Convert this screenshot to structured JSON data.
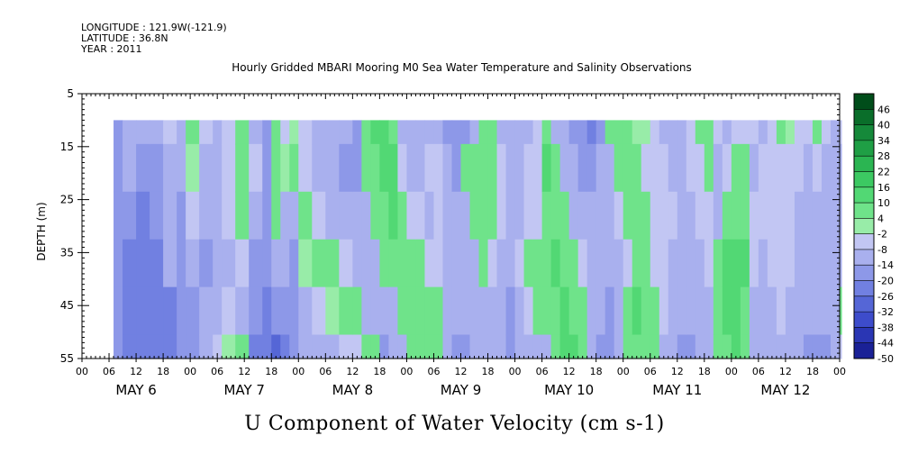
{
  "header": {
    "longitude": "LONGITUDE : 121.9W(-121.9)",
    "latitude": "LATITUDE : 36.8N",
    "year": "YEAR : 2011",
    "subtitle": "Hourly Gridded MBARI Mooring M0 Sea Water Temperature and Salinity Observations"
  },
  "chart_data": {
    "type": "heatmap",
    "title": "U Component of Water Velocity (cm s-1)",
    "subtitle": "Hourly Gridded MBARI Mooring M0 Sea Water Temperature and Salinity Observations",
    "ylabel": "DEPTH (m)",
    "xlabel": "",
    "y_axis": {
      "range": [
        5,
        55
      ],
      "inverted": true,
      "tick_labels": [
        "5",
        "15",
        "25",
        "35",
        "45",
        "55"
      ]
    },
    "x_axis": {
      "range_hours": [
        0,
        168
      ],
      "hour_tick_labels": [
        "00",
        "06",
        "12",
        "18",
        "00",
        "06",
        "12",
        "18",
        "00",
        "06",
        "12",
        "18",
        "00",
        "06",
        "12",
        "18",
        "00",
        "06",
        "12",
        "18",
        "00",
        "06",
        "12",
        "18",
        "00",
        "06",
        "12",
        "18",
        "00"
      ],
      "day_labels": [
        "MAY  6",
        "MAY  7",
        "MAY  8",
        "MAY  9",
        "MAY 10",
        "MAY 11",
        "MAY 12"
      ]
    },
    "data_extent": {
      "start_hour": 7,
      "end_hour": 168,
      "top_depth": 10,
      "bottom_depth": 55
    },
    "colorbar": {
      "labels": [
        "46",
        "40",
        "34",
        "28",
        "22",
        "16",
        "10",
        "4",
        "-2",
        "-8",
        "-14",
        "-20",
        "-26",
        "-32",
        "-38",
        "-44",
        "-50"
      ],
      "levels": [
        52,
        46,
        40,
        34,
        28,
        22,
        16,
        10,
        4,
        -2,
        -8,
        -14,
        -20,
        -26,
        -32,
        -38,
        -44,
        -50
      ],
      "colors": [
        "#004d1a",
        "#0a6e2a",
        "#15893a",
        "#1f9f45",
        "#2bb552",
        "#3cc962",
        "#52d874",
        "#6fe38a",
        "#98eca8",
        "#c2c6f3",
        "#a9b0ee",
        "#8d98e8",
        "#7180e1",
        "#5566d6",
        "#3d4ccb",
        "#2a36b4",
        "#1a2196"
      ]
    },
    "profile_columns": [
      {
        "hour": 7,
        "values": [
          -15,
          -16,
          -18,
          -20,
          -20,
          -18
        ]
      },
      {
        "hour": 9,
        "values": [
          -10,
          -12,
          -20,
          -22,
          -24,
          -22
        ]
      },
      {
        "hour": 12,
        "values": [
          -14,
          -18,
          -22,
          -26,
          -26,
          -24
        ]
      },
      {
        "hour": 15,
        "values": [
          -12,
          -16,
          -20,
          -24,
          -26,
          -26
        ]
      },
      {
        "hour": 18,
        "values": [
          -8,
          -10,
          -10,
          -12,
          -22,
          -22
        ]
      },
      {
        "hour": 21,
        "values": [
          -10,
          -14,
          -16,
          -20,
          -20,
          -18
        ]
      },
      {
        "hour": 23,
        "values": [
          4,
          2,
          -8,
          -14,
          -18,
          -18
        ]
      },
      {
        "hour": 26,
        "values": [
          -6,
          -10,
          -14,
          -16,
          -14,
          -12
        ]
      },
      {
        "hour": 29,
        "values": [
          -12,
          -14,
          -14,
          -14,
          -10,
          -8
        ]
      },
      {
        "hour": 31,
        "values": [
          -6,
          -8,
          -8,
          -10,
          -4,
          -2
        ]
      },
      {
        "hour": 34,
        "values": [
          4,
          6,
          8,
          -8,
          -12,
          4
        ]
      },
      {
        "hour": 37,
        "values": [
          -10,
          -8,
          -12,
          -16,
          -20,
          -22
        ]
      },
      {
        "hour": 40,
        "values": [
          -16,
          -18,
          -16,
          -20,
          -24,
          -26
        ]
      },
      {
        "hour": 42,
        "values": [
          4,
          6,
          4,
          -12,
          -20,
          -28
        ]
      },
      {
        "hour": 44,
        "values": [
          -6,
          -2,
          -10,
          -14,
          -20,
          -22
        ]
      },
      {
        "hour": 46,
        "values": [
          2,
          6,
          -10,
          -16,
          -18,
          -16
        ]
      },
      {
        "hour": 48,
        "values": [
          -8,
          -4,
          4,
          2,
          -12,
          -14
        ]
      },
      {
        "hour": 51,
        "values": [
          -10,
          -12,
          -6,
          6,
          -6,
          -12
        ]
      },
      {
        "hour": 54,
        "values": [
          -12,
          -14,
          -10,
          4,
          2,
          -10
        ]
      },
      {
        "hour": 57,
        "values": [
          -14,
          -16,
          -12,
          -8,
          6,
          -8
        ]
      },
      {
        "hour": 60,
        "values": [
          -16,
          -16,
          -14,
          -12,
          4,
          -4
        ]
      },
      {
        "hour": 62,
        "values": [
          8,
          6,
          -12,
          -14,
          -12,
          6
        ]
      },
      {
        "hour": 64,
        "values": [
          10,
          8,
          6,
          -12,
          -14,
          8
        ]
      },
      {
        "hour": 66,
        "values": [
          12,
          10,
          8,
          4,
          -12,
          -16
        ]
      },
      {
        "hour": 68,
        "values": [
          8,
          10,
          10,
          6,
          -10,
          -14
        ]
      },
      {
        "hour": 70,
        "values": [
          -10,
          -8,
          8,
          6,
          4,
          -12
        ]
      },
      {
        "hour": 72,
        "values": [
          -12,
          -10,
          -6,
          8,
          6,
          4
        ]
      },
      {
        "hour": 74,
        "values": [
          -14,
          -12,
          -8,
          4,
          6,
          8
        ]
      },
      {
        "hour": 76,
        "values": [
          -12,
          -8,
          -10,
          -6,
          6,
          8
        ]
      },
      {
        "hour": 78,
        "values": [
          -10,
          -6,
          -8,
          -8,
          4,
          6
        ]
      },
      {
        "hour": 80,
        "values": [
          -16,
          -14,
          -12,
          -10,
          -12,
          -14
        ]
      },
      {
        "hour": 82,
        "values": [
          -20,
          -18,
          -14,
          -12,
          -14,
          -16
        ]
      },
      {
        "hour": 84,
        "values": [
          -16,
          6,
          -10,
          -12,
          -14,
          -16
        ]
      },
      {
        "hour": 86,
        "values": [
          -14,
          8,
          6,
          -10,
          -12,
          -14
        ]
      },
      {
        "hour": 88,
        "values": [
          4,
          6,
          8,
          4,
          -10,
          -12
        ]
      },
      {
        "hour": 90,
        "values": [
          6,
          8,
          4,
          -8,
          -10,
          -12
        ]
      },
      {
        "hour": 92,
        "values": [
          -10,
          -6,
          -8,
          -10,
          -12,
          -14
        ]
      },
      {
        "hour": 94,
        "values": [
          -12,
          -10,
          -12,
          -14,
          -16,
          -18
        ]
      },
      {
        "hour": 96,
        "values": [
          -14,
          -12,
          -10,
          -8,
          -10,
          -12
        ]
      },
      {
        "hour": 98,
        "values": [
          -10,
          -8,
          -6,
          4,
          -8,
          -10
        ]
      },
      {
        "hour": 100,
        "values": [
          -8,
          -6,
          -4,
          6,
          4,
          -10
        ]
      },
      {
        "hour": 102,
        "values": [
          8,
          10,
          6,
          4,
          8,
          -12
        ]
      },
      {
        "hour": 104,
        "values": [
          -10,
          6,
          8,
          10,
          6,
          8
        ]
      },
      {
        "hour": 106,
        "values": [
          -12,
          -10,
          4,
          8,
          10,
          10
        ]
      },
      {
        "hour": 108,
        "values": [
          -18,
          -14,
          -10,
          4,
          8,
          12
        ]
      },
      {
        "hour": 110,
        "values": [
          -20,
          -16,
          -12,
          -8,
          4,
          8
        ]
      },
      {
        "hour": 112,
        "values": [
          -24,
          -18,
          -14,
          -12,
          -10,
          -14
        ]
      },
      {
        "hour": 114,
        "values": [
          -16,
          -14,
          -12,
          -10,
          -12,
          -18
        ]
      },
      {
        "hour": 116,
        "values": [
          4,
          -10,
          -12,
          -14,
          -16,
          -20
        ]
      },
      {
        "hour": 118,
        "values": [
          6,
          4,
          -8,
          -10,
          -12,
          -10
        ]
      },
      {
        "hour": 120,
        "values": [
          4,
          6,
          4,
          -6,
          4,
          8
        ]
      },
      {
        "hour": 122,
        "values": [
          2,
          4,
          6,
          8,
          10,
          8
        ]
      },
      {
        "hour": 124,
        "values": [
          -2,
          -4,
          4,
          6,
          8,
          6
        ]
      },
      {
        "hour": 126,
        "values": [
          -8,
          -6,
          -4,
          -6,
          4,
          4
        ]
      },
      {
        "hour": 128,
        "values": [
          -10,
          -8,
          -6,
          -8,
          -6,
          -10
        ]
      },
      {
        "hour": 130,
        "values": [
          -12,
          -10,
          -8,
          -10,
          -12,
          -14
        ]
      },
      {
        "hour": 132,
        "values": [
          -10,
          -12,
          -10,
          -12,
          -14,
          -16
        ]
      },
      {
        "hour": 134,
        "values": [
          -6,
          -8,
          -10,
          -12,
          -14,
          -16
        ]
      },
      {
        "hour": 136,
        "values": [
          4,
          -4,
          -8,
          -10,
          -12,
          -14
        ]
      },
      {
        "hour": 138,
        "values": [
          6,
          4,
          -6,
          -8,
          -10,
          -12
        ]
      },
      {
        "hour": 140,
        "values": [
          -8,
          -12,
          -14,
          6,
          8,
          4
        ]
      },
      {
        "hour": 142,
        "values": [
          -10,
          -8,
          4,
          10,
          12,
          8
        ]
      },
      {
        "hour": 144,
        "values": [
          -8,
          6,
          8,
          14,
          12,
          10
        ]
      },
      {
        "hour": 146,
        "values": [
          -6,
          4,
          6,
          10,
          8,
          6
        ]
      },
      {
        "hour": 148,
        "values": [
          -8,
          -10,
          -6,
          -8,
          -10,
          -12
        ]
      },
      {
        "hour": 150,
        "values": [
          -10,
          -8,
          -8,
          -10,
          -12,
          -12
        ]
      },
      {
        "hour": 152,
        "values": [
          -6,
          -4,
          -6,
          -8,
          -10,
          -10
        ]
      },
      {
        "hour": 154,
        "values": [
          4,
          -4,
          -6,
          -8,
          -8,
          -10
        ]
      },
      {
        "hour": 156,
        "values": [
          2,
          -6,
          -8,
          -8,
          -10,
          -12
        ]
      },
      {
        "hour": 158,
        "values": [
          -6,
          -8,
          -10,
          -10,
          -12,
          -14
        ]
      },
      {
        "hour": 160,
        "values": [
          -8,
          -10,
          -10,
          -12,
          -14,
          -16
        ]
      },
      {
        "hour": 162,
        "values": [
          4,
          -8,
          -10,
          -12,
          -14,
          -18
        ]
      },
      {
        "hour": 164,
        "values": [
          -6,
          -10,
          -12,
          -12,
          -14,
          -16
        ]
      },
      {
        "hour": 166,
        "values": [
          -10,
          -12,
          -14,
          -14,
          -12,
          -10
        ]
      },
      {
        "hour": 168,
        "values": [
          -8,
          -10,
          -12,
          -10,
          4,
          -8
        ]
      }
    ],
    "profile_depths": [
      10,
      19,
      28,
      37,
      46,
      55
    ]
  }
}
